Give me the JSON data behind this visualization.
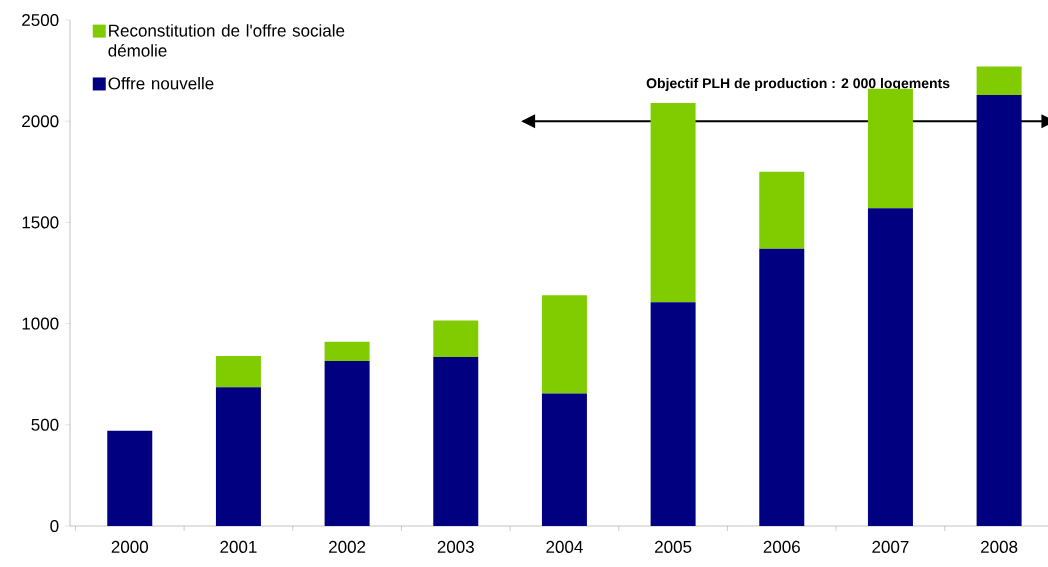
{
  "chart_data": {
    "type": "bar",
    "stacked": true,
    "categories": [
      "2000",
      "2001",
      "2002",
      "2003",
      "2004",
      "2005",
      "2006",
      "2007",
      "2008"
    ],
    "series": [
      {
        "name": "Offre nouvelle",
        "color": "#000080",
        "values": [
          470,
          685,
          815,
          835,
          655,
          1105,
          1370,
          1570,
          2130
        ]
      },
      {
        "name": "Reconstitution de l'offre sociale démolie",
        "color": "#80cc00",
        "values": [
          null,
          155,
          95,
          180,
          485,
          985,
          380,
          590,
          140
        ]
      }
    ],
    "ylim": [
      0,
      2500
    ],
    "yticks": [
      0,
      500,
      1000,
      1500,
      2000,
      2500
    ],
    "ref_lines": [
      {
        "axis": "y",
        "value": 2000,
        "label": "Objectif PLH de production : 2 000 logements"
      }
    ],
    "legend": "top left",
    "grid": false
  }
}
